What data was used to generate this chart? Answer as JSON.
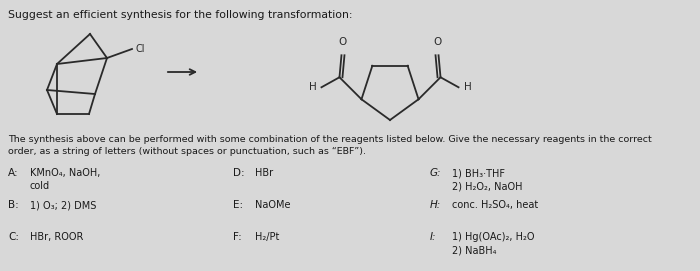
{
  "title": "Suggest an efficient synthesis for the following transformation:",
  "body_text": "The synthesis above can be performed with some combination of the reagents listed below. Give the necessary reagents in the correct\norder, as a string of letters (without spaces or punctuation, such as “EBF”).",
  "reagents": [
    {
      "label": "A:",
      "text": "KMnO₄, NaOH,\ncold"
    },
    {
      "label": "B:",
      "text": "1) O₃; 2) DMS"
    },
    {
      "label": "C:",
      "text": "HBr, ROOR"
    },
    {
      "label": "D:",
      "text": "HBr"
    },
    {
      "label": "E:",
      "text": "NaOMe"
    },
    {
      "label": "F:",
      "text": "H₂/Pt"
    },
    {
      "label": "G:",
      "text": "1) BH₃·THF\n2) H₂O₂, NaOH"
    },
    {
      "label": "H:",
      "text": "conc. H₂SO₄, heat"
    },
    {
      "label": "I:",
      "text": "1) Hg(OAc)₂, H₂O\n2) NaBH₄"
    }
  ],
  "bg_color": "#d8d8d8",
  "text_color": "#1a1a1a",
  "mol_color": "#2a2a2a",
  "title_fontsize": 7.8,
  "body_fontsize": 6.8,
  "reagent_label_fontsize": 7.5,
  "reagent_text_fontsize": 7.0
}
